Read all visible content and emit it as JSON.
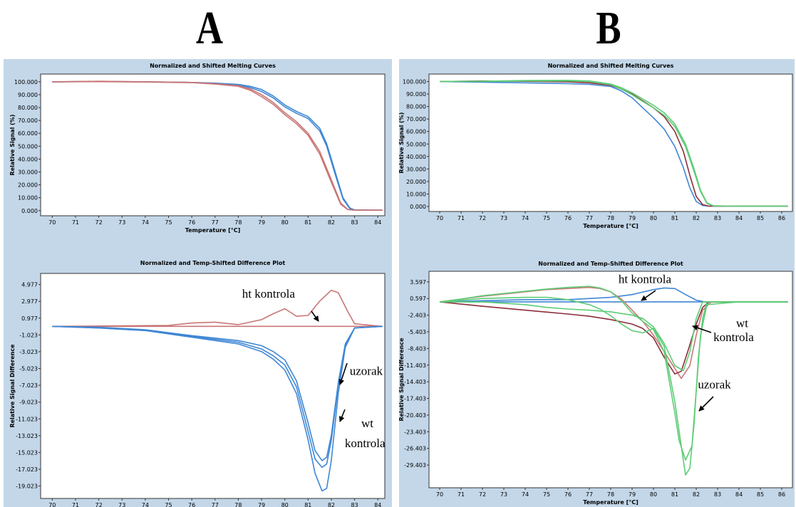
{
  "panels": {
    "a": "A",
    "b": "B"
  },
  "colors": {
    "blue": "#3f87d4",
    "red": "#c97676",
    "green": "#5dcc76",
    "darkred": "#8c2d3a",
    "background": "#c3d7e9"
  },
  "chart_data": [
    {
      "type": "line",
      "title": "Normalized and Shifted Melting Curves",
      "xlabel": "Temperature [°C]",
      "ylabel": "Relative Signal (%)",
      "xlim": [
        69.5,
        84.3
      ],
      "ylim": [
        -4,
        106
      ],
      "xticks": [
        70,
        71,
        72,
        73,
        74,
        75,
        76,
        77,
        78,
        79,
        80,
        81,
        82,
        83,
        84
      ],
      "yticks": [
        0,
        10,
        20,
        30,
        40,
        50,
        60,
        70,
        80,
        90,
        100
      ],
      "ytick_labels": [
        "0.000",
        "10.000",
        "20.000",
        "30.000",
        "40.000",
        "50.000",
        "60.000",
        "70.000",
        "80.000",
        "90.000",
        "100.000"
      ],
      "grid": false,
      "series": [
        {
          "color": "#3f87d4",
          "x": [
            70,
            72,
            74,
            76,
            77,
            78,
            78.5,
            79,
            79.5,
            80,
            80.5,
            81,
            81.5,
            81.8,
            82.2,
            82.5,
            82.8,
            83,
            84.2
          ],
          "y": [
            100,
            100.3,
            100,
            99.5,
            99,
            98,
            96.5,
            94,
            89,
            82,
            77,
            73,
            64,
            52,
            28,
            10,
            2,
            0.5,
            0.3
          ]
        },
        {
          "color": "#3f87d4",
          "x": [
            70,
            72,
            74,
            76,
            77,
            78,
            78.5,
            79,
            79.5,
            80,
            80.5,
            81,
            81.5,
            81.8,
            82.2,
            82.5,
            82.8,
            83,
            84.2
          ],
          "y": [
            100,
            100.2,
            100,
            99.5,
            98.7,
            97.5,
            95.5,
            92.5,
            87.5,
            80.5,
            75.5,
            71.5,
            62,
            50,
            26,
            9,
            1.5,
            0.4,
            0.3
          ]
        },
        {
          "color": "#c97676",
          "x": [
            70,
            72,
            74,
            76,
            77,
            78,
            78.5,
            79,
            79.5,
            80,
            80.5,
            81,
            81.5,
            82,
            82.4,
            82.7,
            83,
            84.2
          ],
          "y": [
            100,
            100.4,
            100,
            99.5,
            98.5,
            97,
            94.5,
            90,
            84,
            76,
            69,
            60,
            46,
            24,
            6,
            1,
            0.3,
            0.3
          ]
        },
        {
          "color": "#c97676",
          "x": [
            70,
            72,
            74,
            76,
            77,
            78,
            78.5,
            79,
            79.5,
            80,
            80.5,
            81,
            81.5,
            82,
            82.4,
            82.7,
            83,
            84.2
          ],
          "y": [
            100,
            100.1,
            99.8,
            99.3,
            98.2,
            96.5,
            93.5,
            88.5,
            82.5,
            74.5,
            67.5,
            58.5,
            44,
            22,
            5,
            0.8,
            0.3,
            0.3
          ]
        }
      ],
      "annotations": []
    },
    {
      "type": "line",
      "title": "Normalized and Temp-Shifted Difference Plot",
      "xlabel": "Temperature [°C]",
      "ylabel": "Relative Signal Difference",
      "xlim": [
        69.5,
        84.3
      ],
      "ylim": [
        -20.5,
        6.3
      ],
      "xticks": [
        70,
        71,
        72,
        73,
        74,
        75,
        76,
        77,
        78,
        79,
        80,
        81,
        82,
        83,
        84
      ],
      "yticks": [
        4.977,
        2.977,
        0.977,
        -1.023,
        -3.023,
        -5.023,
        -7.023,
        -9.023,
        -11.023,
        -13.023,
        -15.023,
        -17.023,
        -19.023
      ],
      "ytick_labels": [
        "4.977",
        "2.977",
        "0.977",
        "-1.023",
        "-3.023",
        "-5.023",
        "-7.023",
        "-9.023",
        "-11.023",
        "-13.023",
        "-15.023",
        "-17.023",
        "-19.023"
      ],
      "grid": false,
      "series": [
        {
          "color": "#c97676",
          "x": [
            70,
            84.2
          ],
          "y": [
            0,
            0
          ]
        },
        {
          "color": "#c97676",
          "x": [
            70,
            75,
            76,
            77,
            78,
            79,
            79.5,
            80,
            80.5,
            81,
            81.5,
            82,
            82.3,
            82.7,
            83,
            84.2
          ],
          "y": [
            0,
            0.1,
            0.4,
            0.5,
            0.2,
            0.8,
            1.5,
            2.1,
            1.2,
            1.3,
            3,
            4.3,
            4,
            1.8,
            0.3,
            0
          ]
        },
        {
          "color": "#3f87d4",
          "x": [
            70,
            72,
            74,
            76,
            78,
            79,
            79.5,
            80,
            80.5,
            81,
            81.3,
            81.6,
            81.8,
            82,
            82.3,
            82.6,
            83,
            84.2
          ],
          "y": [
            0,
            -0.2,
            -0.5,
            -1.3,
            -2.1,
            -3,
            -3.9,
            -5.2,
            -8,
            -13.5,
            -17.5,
            -19.6,
            -19.3,
            -16,
            -8,
            -2.5,
            -0.2,
            0
          ]
        },
        {
          "color": "#3f87d4",
          "x": [
            70,
            72,
            74,
            76,
            78,
            79,
            79.5,
            80,
            80.5,
            81,
            81.3,
            81.6,
            81.8,
            82,
            82.3,
            82.6,
            83,
            84.2
          ],
          "y": [
            0,
            -0.2,
            -0.5,
            -1.2,
            -1.9,
            -2.7,
            -3.5,
            -4.6,
            -7.2,
            -12.5,
            -15.8,
            -16.8,
            -16.4,
            -13.6,
            -7,
            -2.3,
            -0.2,
            0
          ]
        },
        {
          "color": "#3f87d4",
          "x": [
            70,
            72,
            74,
            76,
            78,
            79,
            79.5,
            80,
            80.5,
            81,
            81.3,
            81.6,
            81.8,
            82,
            82.3,
            82.6,
            83,
            84.2
          ],
          "y": [
            0,
            -0.1,
            -0.4,
            -1.1,
            -1.7,
            -2.3,
            -3,
            -4,
            -6.5,
            -11.5,
            -14.8,
            -16,
            -15.6,
            -13,
            -6.7,
            -2.1,
            -0.2,
            0
          ]
        }
      ],
      "annotations": [
        {
          "text": "ht kontrola",
          "x": 79.3,
          "y": 3.4
        },
        {
          "text": "uzorak",
          "x": 83.5,
          "y": -5.8
        },
        {
          "text": "wt",
          "x": 83.55,
          "y": -12.0
        },
        {
          "text": "kontrola",
          "x": 83.45,
          "y": -14.4
        }
      ]
    },
    {
      "type": "line",
      "title": "Normalized and Shifted Melting Curves",
      "xlabel": "Temperature [°C]",
      "ylabel": "Relative Signal (%)",
      "xlim": [
        69.5,
        86.5
      ],
      "ylim": [
        -4,
        106
      ],
      "xticks": [
        70,
        71,
        72,
        73,
        74,
        75,
        76,
        77,
        78,
        79,
        80,
        81,
        82,
        83,
        84,
        85,
        86
      ],
      "yticks": [
        0,
        10,
        20,
        30,
        40,
        50,
        60,
        70,
        80,
        90,
        100
      ],
      "ytick_labels": [
        "0.000",
        "10.000",
        "20.000",
        "30.000",
        "40.000",
        "50.000",
        "60.000",
        "70.000",
        "80.000",
        "90.000",
        "100.000"
      ],
      "grid": false,
      "series": [
        {
          "color": "#3f87d4",
          "x": [
            70,
            72,
            74,
            76,
            77,
            78,
            78.5,
            79,
            79.5,
            80,
            80.5,
            81,
            81.4,
            81.7,
            82,
            82.3,
            82.6,
            84,
            86.3
          ],
          "y": [
            100,
            99.5,
            99,
            98.3,
            97.8,
            96,
            92.5,
            87,
            79,
            71,
            62,
            48,
            31,
            15,
            4,
            0.8,
            0.3,
            0.3,
            0.3
          ]
        },
        {
          "color": "#8c2d3a",
          "x": [
            70,
            72,
            74,
            76,
            77,
            78,
            78.5,
            79,
            79.5,
            80,
            80.5,
            81,
            81.4,
            81.7,
            82,
            82.3,
            82.6,
            84,
            86.3
          ],
          "y": [
            100,
            100.5,
            100.2,
            99.8,
            99,
            97,
            94,
            90,
            84.5,
            79,
            72,
            60,
            44,
            25,
            8,
            1.5,
            0.3,
            0.3,
            0.3
          ]
        },
        {
          "color": "#5dcc76",
          "x": [
            70,
            72,
            74,
            76,
            77,
            78,
            78.5,
            79,
            79.5,
            80,
            80.5,
            81,
            81.5,
            81.9,
            82.2,
            82.5,
            82.8,
            84,
            86.3
          ],
          "y": [
            100,
            100.3,
            100.8,
            101,
            100.5,
            98,
            95,
            91,
            86,
            81,
            75,
            66,
            50,
            30,
            13,
            3,
            0.5,
            0.3,
            0.3
          ]
        },
        {
          "color": "#5dcc76",
          "x": [
            70,
            72,
            74,
            76,
            77,
            78,
            78.5,
            79,
            79.5,
            80,
            80.5,
            81,
            81.5,
            81.9,
            82.2,
            82.5,
            82.8,
            84,
            86.3
          ],
          "y": [
            100,
            100.1,
            100.5,
            100.5,
            100,
            97.5,
            94,
            89.5,
            84,
            79,
            73,
            64,
            48,
            28,
            12,
            2.5,
            0.5,
            0.3,
            0.3
          ]
        }
      ],
      "annotations": []
    },
    {
      "type": "line",
      "title": "Normalized and Temp-Shifted Difference Plot",
      "xlabel": "Temperature [°C]",
      "ylabel": "Relative Signal Difference",
      "xlim": [
        69.5,
        86.5
      ],
      "ylim": [
        -33.5,
        5.5
      ],
      "xticks": [
        70,
        71,
        72,
        73,
        74,
        75,
        76,
        77,
        78,
        79,
        80,
        81,
        82,
        83,
        84,
        85,
        86
      ],
      "yticks": [
        3.597,
        0.597,
        -2.403,
        -5.403,
        -8.403,
        -11.403,
        -14.403,
        -17.403,
        -20.403,
        -23.403,
        -26.403,
        -29.403
      ],
      "ytick_labels": [
        "3.597",
        "0.597",
        "-2.403",
        "-5.403",
        "-8.403",
        "-11.403",
        "-14.403",
        "-17.403",
        "-20.403",
        "-23.403",
        "-26.403",
        "-29.403"
      ],
      "grid": false,
      "series": [
        {
          "color": "#3f87d4",
          "x": [
            70,
            86.3
          ],
          "y": [
            0,
            0
          ]
        },
        {
          "color": "#3f87d4",
          "x": [
            70,
            72,
            74,
            76,
            77,
            78,
            79,
            80,
            80.5,
            81,
            81.5,
            82,
            82.4,
            82.8,
            84,
            86.3
          ],
          "y": [
            0,
            0.2,
            0.4,
            0.4,
            0.6,
            0.8,
            1.3,
            2.2,
            2.5,
            2.4,
            1.3,
            0.3,
            0,
            0,
            0,
            0
          ]
        },
        {
          "color": "#c97676",
          "x": [
            70,
            71,
            72,
            73,
            74,
            75,
            76,
            77,
            77.5,
            78,
            78.5,
            79,
            79.5,
            80,
            80.5,
            81,
            81.3,
            81.7,
            82,
            82.3,
            82.7,
            84,
            86.3
          ],
          "y": [
            0,
            0.5,
            1,
            1.4,
            1.8,
            2.2,
            2.4,
            2.6,
            2.4,
            1.8,
            0.5,
            -1.5,
            -3.5,
            -6,
            -9,
            -12,
            -13.8,
            -11.5,
            -6,
            -1.5,
            0,
            0,
            0
          ]
        },
        {
          "color": "#8c2d3a",
          "x": [
            70,
            72,
            74,
            76,
            77,
            78,
            79,
            79.5,
            80,
            80.5,
            81,
            81.3,
            81.6,
            82,
            82.3,
            82.6,
            84,
            86.3
          ],
          "y": [
            0,
            -0.8,
            -1.5,
            -2.2,
            -2.6,
            -3.2,
            -4,
            -4.8,
            -6.5,
            -10,
            -13,
            -12.5,
            -9,
            -4,
            -1,
            0,
            0,
            0
          ]
        },
        {
          "color": "#5dcc76",
          "x": [
            70,
            71,
            72,
            73,
            74,
            75,
            76,
            77,
            77.5,
            78,
            78.5,
            79,
            79.5,
            80,
            80.5,
            81,
            81.2,
            81.5,
            81.8,
            82,
            82.2,
            82.5,
            84,
            86.3
          ],
          "y": [
            0,
            0.5,
            1.1,
            1.5,
            1.9,
            2.3,
            2.6,
            2.8,
            2.5,
            1.8,
            0.2,
            -2,
            -3.5,
            -5,
            -9,
            -20,
            -25,
            -28.5,
            -26,
            -16,
            -6,
            -0.5,
            0,
            0
          ]
        },
        {
          "color": "#5dcc76",
          "x": [
            70,
            72,
            74,
            75,
            76,
            77,
            77.5,
            78,
            78.5,
            79,
            79.5,
            80,
            80.5,
            81,
            81.3,
            81.5,
            81.7,
            81.9,
            82.1,
            82.3,
            82.5,
            84,
            86.3
          ],
          "y": [
            0,
            0.6,
            0.8,
            0.8,
            0.4,
            -0.5,
            -1.3,
            -2.5,
            -4,
            -5.2,
            -5.6,
            -4.8,
            -8,
            -18,
            -26,
            -31.2,
            -30,
            -22,
            -10,
            -3,
            0,
            0,
            0
          ]
        },
        {
          "color": "#5dcc76",
          "x": [
            70,
            72,
            74,
            75,
            76,
            77,
            78,
            79,
            79.5,
            80,
            80.5,
            81,
            81.4,
            81.7,
            82,
            82.3,
            84,
            86.3
          ],
          "y": [
            0,
            0,
            -0.5,
            -1,
            -1.3,
            -1.5,
            -1.8,
            -2.4,
            -3,
            -4.5,
            -7.5,
            -11.5,
            -12.4,
            -9,
            -3,
            0,
            0,
            0
          ]
        }
      ],
      "annotations": [
        {
          "text": "ht kontrola",
          "x": 79.6,
          "y": 3.4
        },
        {
          "text": "wt",
          "x": 84.15,
          "y": -4.6
        },
        {
          "text": "kontrola",
          "x": 83.75,
          "y": -7.1
        },
        {
          "text": "uzorak",
          "x": 82.85,
          "y": -15.6
        }
      ]
    }
  ]
}
